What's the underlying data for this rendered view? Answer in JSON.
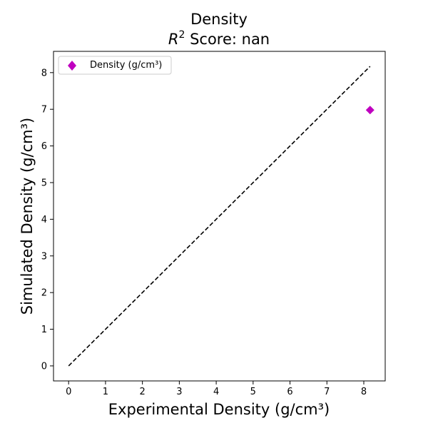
{
  "chart_data": {
    "type": "scatter",
    "title": "Density",
    "subtitle": {
      "r_symbol": "R",
      "r_exp": "2",
      "score_text": " Score: nan"
    },
    "xlabel": "Experimental Density (g/cm³)",
    "ylabel": "Simulated Density (g/cm³)",
    "xlim": [
      -0.41,
      8.58
    ],
    "ylim": [
      -0.41,
      8.58
    ],
    "xticks": [
      0,
      1,
      2,
      3,
      4,
      5,
      6,
      7,
      8
    ],
    "yticks": [
      0,
      1,
      2,
      3,
      4,
      5,
      6,
      7,
      8
    ],
    "grid": false,
    "legend_position": "upper-left",
    "series": [
      {
        "name": "Density (g/cm³)",
        "marker": "diamond",
        "color": "#bf00bf",
        "points": [
          {
            "x": 8.17,
            "y": 6.98
          }
        ]
      }
    ],
    "reference_line": {
      "style": "dashed",
      "color": "#000000",
      "from": [
        0,
        0
      ],
      "to": [
        8.17,
        8.17
      ]
    }
  }
}
